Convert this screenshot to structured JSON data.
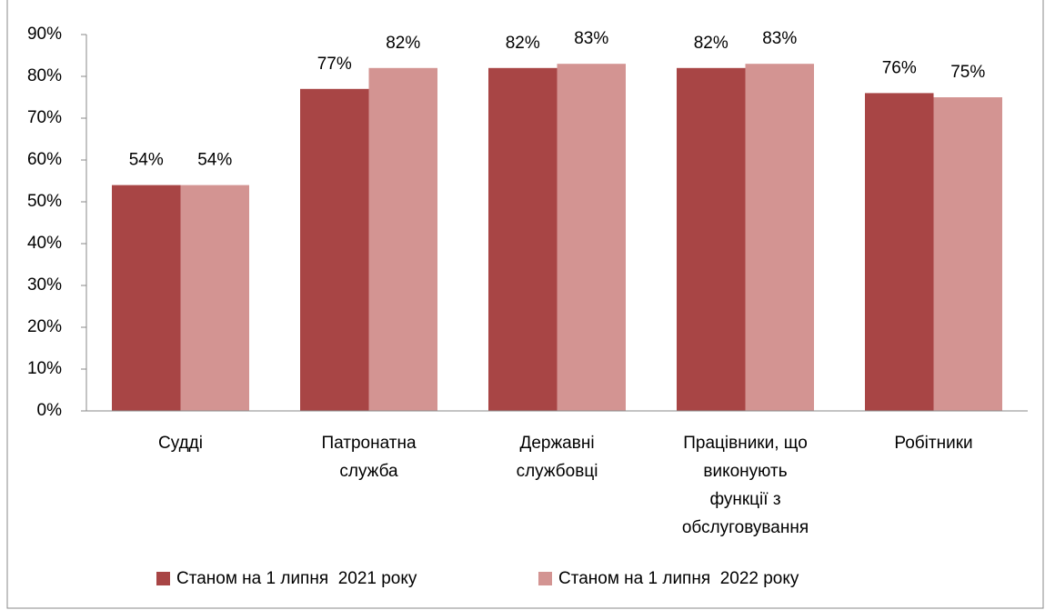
{
  "chart_data": {
    "type": "bar",
    "categories": [
      "Судді",
      "Патронатна\nслужба",
      "Державні\nслужбовці",
      "Працівники, що\nвиконують\nфункції з\nобслуговування",
      "Робітники"
    ],
    "series": [
      {
        "name": "Станом на 1 липня  2021 року",
        "color": "#a84545",
        "values": [
          54,
          77,
          82,
          82,
          76
        ],
        "value_labels": [
          "54%",
          "77%",
          "82%",
          "82%",
          "76%"
        ]
      },
      {
        "name": "Станом на 1 липня  2022 року",
        "color": "#d39492",
        "values": [
          54,
          82,
          83,
          83,
          75
        ],
        "value_labels": [
          "54%",
          "82%",
          "83%",
          "83%",
          "75%"
        ]
      }
    ],
    "ylim": [
      0,
      90
    ],
    "yticks": [
      {
        "value": 0,
        "label": "0%"
      },
      {
        "value": 10,
        "label": "10%"
      },
      {
        "value": 20,
        "label": "20%"
      },
      {
        "value": 30,
        "label": "30%"
      },
      {
        "value": 40,
        "label": "40%"
      },
      {
        "value": 50,
        "label": "50%"
      },
      {
        "value": 60,
        "label": "60%"
      },
      {
        "value": 70,
        "label": "70%"
      },
      {
        "value": 80,
        "label": "80%"
      },
      {
        "value": 90,
        "label": "90%"
      }
    ],
    "grid": false,
    "legend": "bottom"
  }
}
